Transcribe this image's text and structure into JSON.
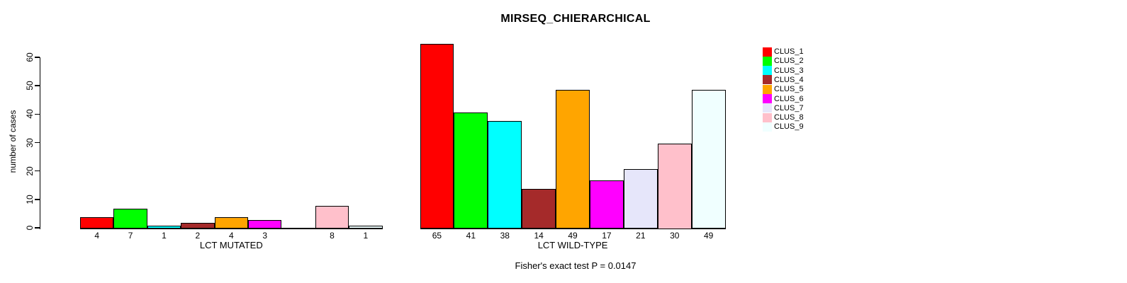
{
  "page": {
    "background_color": "#FFFFFF",
    "text_color": "#000000"
  },
  "chart_data": {
    "type": "bar",
    "title": "MIRSEQ_CHIERARCHICAL",
    "ylabel": "number of cases",
    "note": "Fisher's exact test P = 0.0147",
    "axis_max": 60,
    "ylim": [
      0,
      65
    ],
    "y_ticks": [
      0,
      10,
      20,
      30,
      40,
      50,
      60
    ],
    "grid": "off",
    "legend_position": "right",
    "categories": [
      "CLUS_1",
      "CLUS_2",
      "CLUS_3",
      "CLUS_4",
      "CLUS_5",
      "CLUS_6",
      "CLUS_7",
      "CLUS_8",
      "CLUS_9"
    ],
    "cluster_colors": [
      "#FF0000",
      "#00FF00",
      "#00FFFF",
      "#A52A2A",
      "#FFA500",
      "#FF00FF",
      "#E6E6FA",
      "#FFC0CB",
      "#F0FFFF"
    ],
    "bar_border_color": "#000000",
    "series": [
      {
        "name": "LCT MUTATED",
        "values": [
          4,
          7,
          1,
          2,
          4,
          3,
          0,
          8,
          1
        ]
      },
      {
        "name": "LCT WILD-TYPE",
        "values": [
          65,
          41,
          38,
          14,
          49,
          17,
          21,
          30,
          49
        ]
      }
    ]
  }
}
